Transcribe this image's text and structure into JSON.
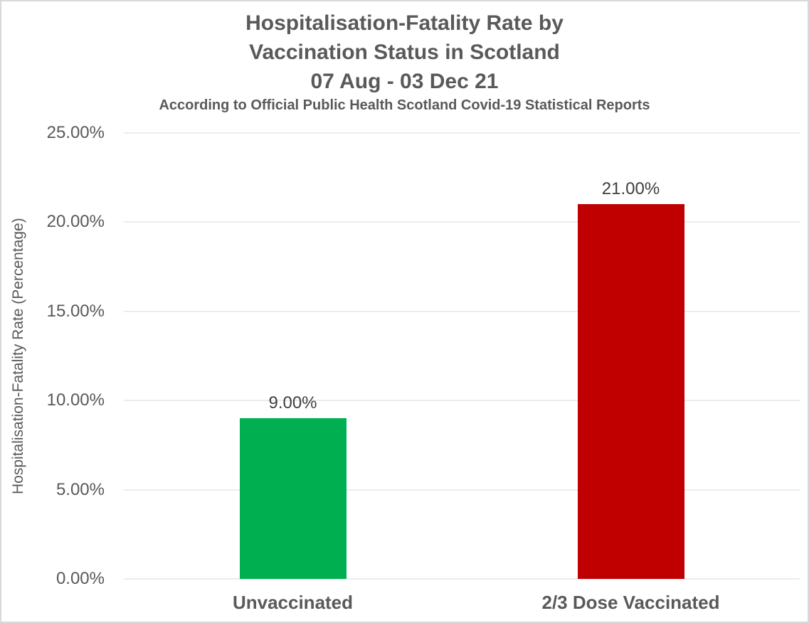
{
  "chart_data": {
    "type": "bar",
    "title_lines": [
      "Hospitalisation-Fatality Rate by",
      "Vaccination Status in Scotland",
      "07 Aug  - 03 Dec 21"
    ],
    "subtitle": "According to Official Public Health Scotland Covid-19 Statistical Reports",
    "ylabel": "Hospitalisation-Fatality Rate (Percentage)",
    "xlabel": "",
    "categories": [
      "Unvaccinated",
      "2/3 Dose Vaccinated"
    ],
    "values": [
      9.0,
      21.0
    ],
    "value_labels": [
      "9.00%",
      "21.00%"
    ],
    "bar_colors": [
      "#00b050",
      "#c00000"
    ],
    "ylim": [
      0,
      25
    ],
    "ytick_values": [
      0,
      5,
      10,
      15,
      20,
      25
    ],
    "yticks": [
      "0.00%",
      "5.00%",
      "10.00%",
      "15.00%",
      "20.00%",
      "25.00%"
    ],
    "grid": "horizontal",
    "gridline_color": "#d9d9d9",
    "legend": "none"
  }
}
